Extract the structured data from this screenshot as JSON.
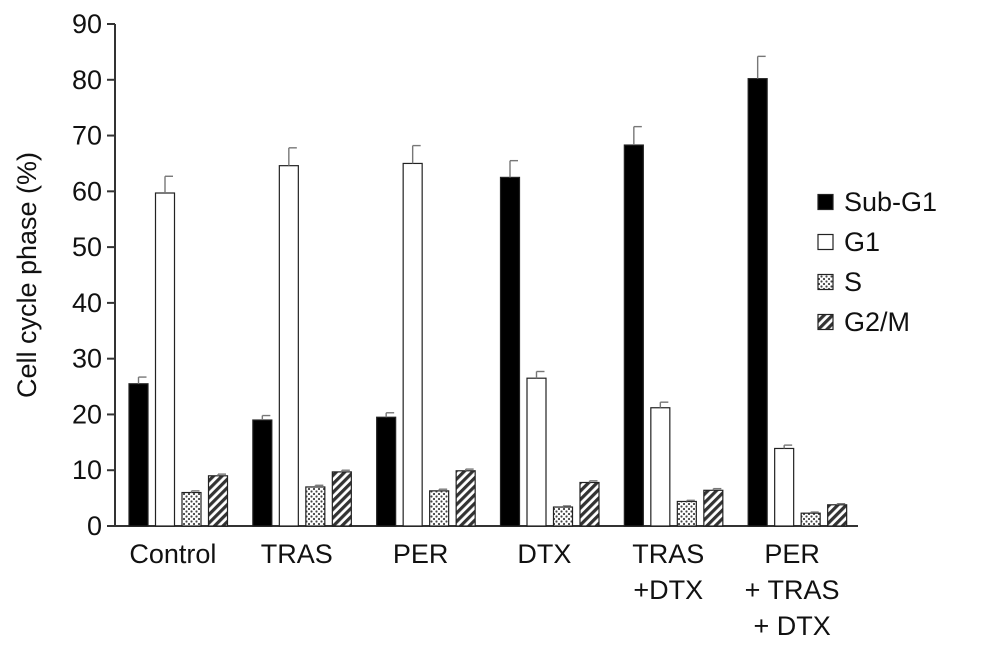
{
  "chart_data": {
    "type": "bar",
    "title": "",
    "xlabel": "",
    "ylabel": "Cell cycle phase (%)",
    "ylim": [
      0,
      90
    ],
    "yticks": [
      0,
      10,
      20,
      30,
      40,
      50,
      60,
      70,
      80,
      90
    ],
    "grid": false,
    "legend_position": "right",
    "categories": [
      [
        "Control"
      ],
      [
        "TRAS"
      ],
      [
        "PER"
      ],
      [
        "DTX"
      ],
      [
        "TRAS",
        "+DTX"
      ],
      [
        "PER",
        "+ TRAS",
        "+ DTX"
      ]
    ],
    "series": [
      {
        "name": "Sub-G1",
        "pattern": "solid-black",
        "values": [
          25.5,
          19.0,
          19.5,
          62.5,
          68.3,
          80.2
        ],
        "errors": [
          1.2,
          0.8,
          0.8,
          3.0,
          3.3,
          4.0
        ]
      },
      {
        "name": "G1",
        "pattern": "white",
        "values": [
          59.7,
          64.6,
          65.0,
          26.5,
          21.2,
          13.9
        ],
        "errors": [
          3.0,
          3.2,
          3.2,
          1.2,
          1.0,
          0.6
        ]
      },
      {
        "name": "S",
        "pattern": "dotted",
        "values": [
          6.0,
          7.0,
          6.3,
          3.4,
          4.4,
          2.3
        ],
        "errors": [
          0.3,
          0.3,
          0.3,
          0.2,
          0.2,
          0.2
        ]
      },
      {
        "name": "G2/M",
        "pattern": "hatched",
        "values": [
          9.0,
          9.7,
          9.9,
          7.8,
          6.4,
          3.8
        ],
        "errors": [
          0.3,
          0.3,
          0.3,
          0.3,
          0.3,
          0.2
        ]
      }
    ]
  }
}
